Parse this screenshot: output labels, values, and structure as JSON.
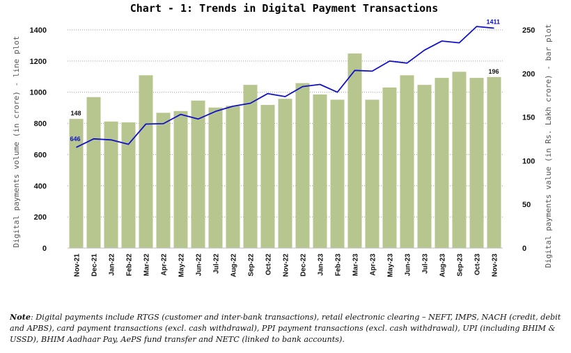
{
  "chart_data": {
    "type": "bar+line",
    "title": "Chart - 1: Trends in Digital Payment Transactions",
    "categories": [
      "Nov-21",
      "Dec-21",
      "Jan-22",
      "Feb-22",
      "Mar-22",
      "Apr-22",
      "May-22",
      "Jun-22",
      "Jul-22",
      "Aug-22",
      "Sep-22",
      "Oct-22",
      "Nov-22",
      "Dec-22",
      "Jan-23",
      "Feb-23",
      "Mar-23",
      "Apr-23",
      "May-23",
      "Jun-23",
      "Jul-23",
      "Aug-23",
      "Sep-23",
      "Oct-23",
      "Nov-23"
    ],
    "bar_series": {
      "name": "Digital payments value (in Rs. Lakh crore) - bar plot",
      "axis": "right",
      "color": "#b7c68f",
      "values": [
        148,
        173,
        145,
        144,
        198,
        155,
        157,
        169,
        161,
        163,
        187,
        164,
        171,
        189,
        176,
        170,
        223,
        170,
        184,
        198,
        187,
        195,
        202,
        195,
        196
      ]
    },
    "line_series": {
      "name": "Digital payments volume (in crore) - line plot",
      "axis": "left",
      "color": "#1010c8",
      "values": [
        646,
        701,
        694,
        666,
        796,
        798,
        858,
        828,
        877,
        910,
        929,
        991,
        972,
        1036,
        1050,
        1000,
        1140,
        1135,
        1200,
        1187,
        1270,
        1328,
        1317,
        1422,
        1411
      ]
    },
    "data_labels": {
      "first_bar": "148",
      "first_line": "646",
      "last_bar": "196",
      "last_line": "1411"
    },
    "y_left": {
      "label": "Digital payments volume (in crore) - line plot",
      "min": 0,
      "max": 1400,
      "ticks": [
        "0",
        "200",
        "400",
        "600",
        "800",
        "1000",
        "1200",
        "1400"
      ]
    },
    "y_right": {
      "label": "Digital payments value (in Rs. Lakh crore) - bar plot",
      "min": 0,
      "max": 250,
      "ticks": [
        "0",
        "50",
        "100",
        "150",
        "200",
        "250"
      ]
    },
    "grid": "horizontal dotted"
  },
  "note": {
    "label": "Note",
    "text": ": Digital payments include RTGS (customer and inter-bank transactions), retail electronic clearing – NEFT, IMPS, NACH (credit, debit and APBS), card payment transactions (excl. cash withdrawal), PPI payment transactions (excl. cash withdrawal), UPI (including BHIM & USSD), BHIM Aadhaar Pay, AePS fund transfer and NETC (linked to bank accounts)."
  }
}
